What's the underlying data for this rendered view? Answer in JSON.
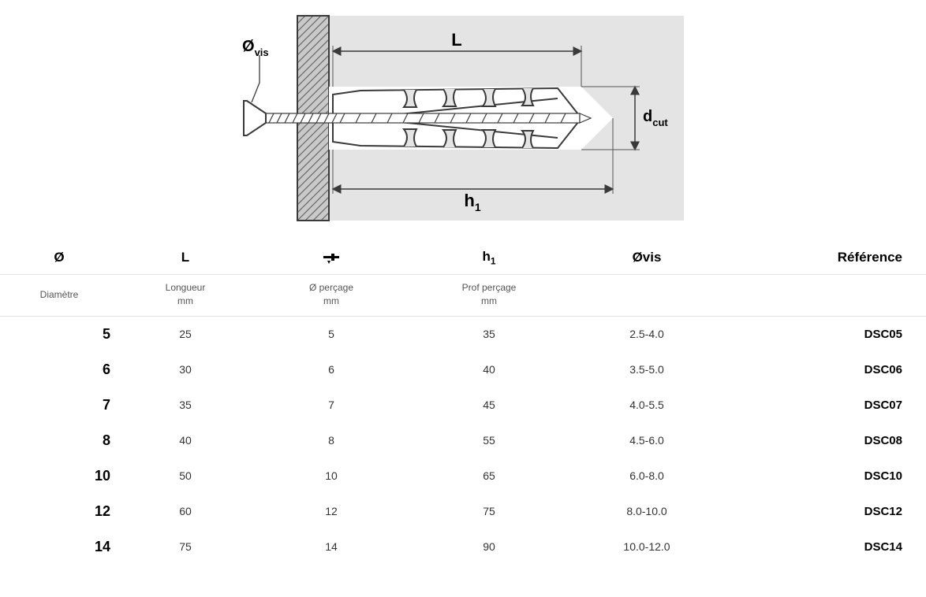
{
  "diagram": {
    "label_ovis": "Ø",
    "label_ovis_sub": "vis",
    "label_L": "L",
    "label_h1": "h",
    "label_h1_sub": "1",
    "label_dcut": "d",
    "label_dcut_sub": "cut",
    "colors": {
      "bg": "#e4e4e4",
      "wall_fill": "#c9c9c9",
      "wall_hatch": "#6c6c6c",
      "plug_fill": "#ffffff",
      "stroke": "#3a3a3a",
      "dim": "#3a3a3a",
      "thin": "#555555"
    }
  },
  "table": {
    "headers": {
      "diameter_symbol": "Ø",
      "length_symbol": "L",
      "drill_icon": "drill",
      "depth_symbol_main": "h",
      "depth_symbol_sub": "1",
      "screw_dia": "Øvis",
      "reference": "Référence"
    },
    "subheaders": {
      "diameter": "Diamètre",
      "length_l1": "Longueur",
      "length_l2": "mm",
      "drill_l1": "Ø perçage",
      "drill_l2": "mm",
      "depth_l1": "Prof perçage",
      "depth_l2": "mm",
      "screw": "",
      "reference": ""
    },
    "rows": [
      {
        "dia": "5",
        "len": "25",
        "drill": "5",
        "depth": "35",
        "screw": "2.5-4.0",
        "ref": "DSC05"
      },
      {
        "dia": "6",
        "len": "30",
        "drill": "6",
        "depth": "40",
        "screw": "3.5-5.0",
        "ref": "DSC06"
      },
      {
        "dia": "7",
        "len": "35",
        "drill": "7",
        "depth": "45",
        "screw": "4.0-5.5",
        "ref": "DSC07"
      },
      {
        "dia": "8",
        "len": "40",
        "drill": "8",
        "depth": "55",
        "screw": "4.5-6.0",
        "ref": "DSC08"
      },
      {
        "dia": "10",
        "len": "50",
        "drill": "10",
        "depth": "65",
        "screw": "6.0-8.0",
        "ref": "DSC10"
      },
      {
        "dia": "12",
        "len": "60",
        "drill": "12",
        "depth": "75",
        "screw": "8.0-10.0",
        "ref": "DSC12"
      },
      {
        "dia": "14",
        "len": "75",
        "drill": "14",
        "depth": "90",
        "screw": "10.0-12.0",
        "ref": "DSC14"
      }
    ],
    "font_sizes": {
      "header": 17,
      "subheader": 12,
      "cell": 14,
      "dia_cell": 18,
      "ref_cell": 15
    },
    "colors": {
      "border": "#e4e4e4",
      "text": "#333333",
      "subtext": "#555555",
      "bold": "#000000"
    }
  }
}
